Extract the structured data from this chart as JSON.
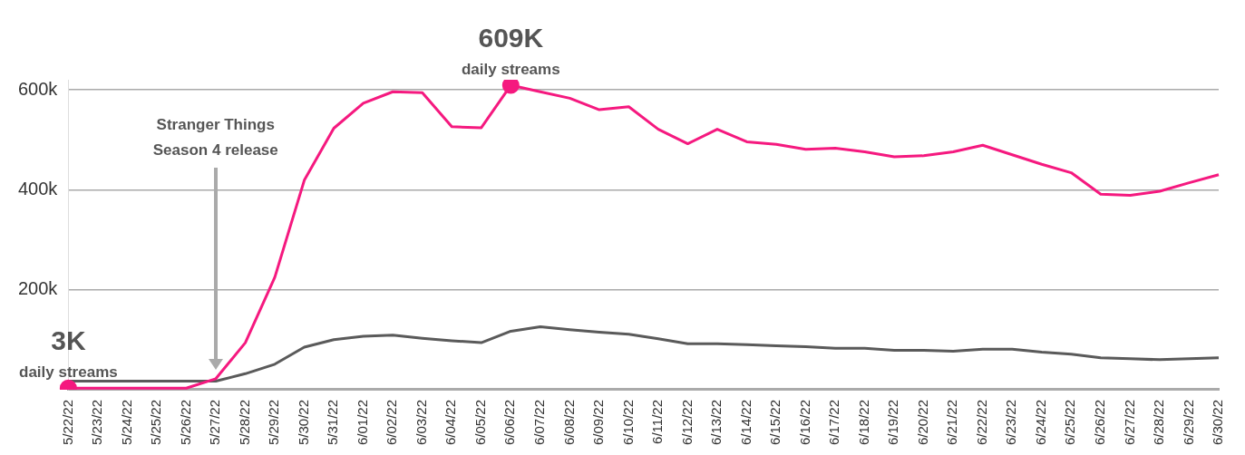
{
  "chart_data": {
    "type": "line",
    "categories": [
      "5/22/22",
      "5/23/22",
      "5/24/22",
      "5/25/22",
      "5/26/22",
      "5/27/22",
      "5/28/22",
      "5/29/22",
      "5/30/22",
      "5/31/22",
      "6/01/22",
      "6/02/22",
      "6/03/22",
      "6/04/22",
      "6/05/22",
      "6/06/22",
      "6/07/22",
      "6/08/22",
      "6/09/22",
      "6/10/22",
      "6/11/22",
      "6/12/22",
      "6/13/22",
      "6/14/22",
      "6/15/22",
      "6/16/22",
      "6/17/22",
      "6/18/22",
      "6/19/22",
      "6/20/22",
      "6/21/22",
      "6/22/22",
      "6/23/22",
      "6/24/22",
      "6/25/22",
      "6/26/22",
      "6/27/22",
      "6/28/22",
      "6/29/22",
      "6/30/22"
    ],
    "series": [
      {
        "color": "#f5197f",
        "values": [
          3000,
          3000,
          3000,
          3000,
          3000,
          22000,
          94000,
          225000,
          419000,
          523000,
          573000,
          596000,
          594000,
          526000,
          524000,
          609000,
          596000,
          583000,
          560000,
          566000,
          521000,
          492000,
          521000,
          496000,
          491000,
          481000,
          483000,
          476000,
          466000,
          468000,
          476000,
          489000,
          470000,
          451000,
          434000,
          391000,
          389000,
          397000,
          414000,
          430000
        ]
      },
      {
        "color": "#5a5a5a",
        "values": [
          17000,
          17000,
          17000,
          17000,
          17000,
          17000,
          32000,
          51000,
          85000,
          100000,
          107000,
          109000,
          103000,
          98000,
          94000,
          117000,
          126000,
          120000,
          115000,
          111000,
          102000,
          92000,
          92000,
          90000,
          88000,
          86000,
          83000,
          83000,
          79000,
          79000,
          77000,
          81000,
          81000,
          75000,
          71000,
          64000,
          62000,
          60000,
          62000,
          64000
        ]
      }
    ],
    "ylim": [
      0,
      620000
    ],
    "yticks": [
      {
        "value": 0,
        "label": null
      },
      {
        "value": 200000,
        "label": "200k"
      },
      {
        "value": 400000,
        "label": "400k"
      },
      {
        "value": 600000,
        "label": "600k"
      }
    ],
    "grid": "y",
    "legend": false,
    "marker": "none",
    "annotations": [
      {
        "text": "3K",
        "x": "5/22/22",
        "y": 3000
      },
      {
        "text": "daily streams",
        "x": "5/22/22",
        "y": 3000
      },
      {
        "text": "609K",
        "x": "6/06/22",
        "y": 609000
      },
      {
        "text": "daily streams",
        "x": "6/06/22",
        "y": 609000
      },
      "Stranger Things Season 4 release"
    ]
  }
}
